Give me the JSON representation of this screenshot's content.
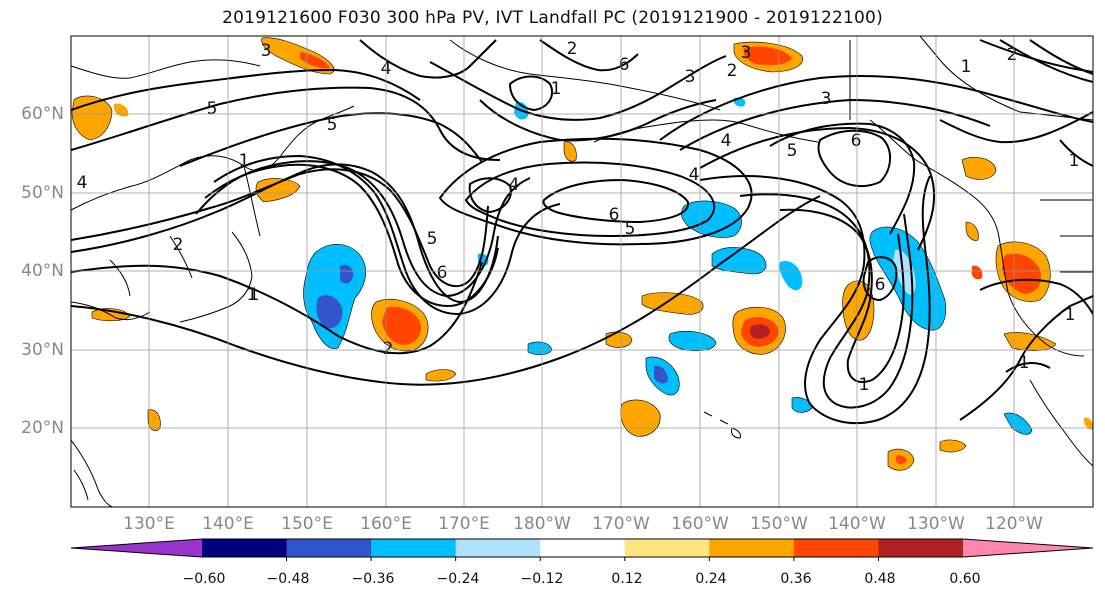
{
  "title": "2019121600 F030 300 hPa PV, IVT Landfall PC (2019121900 - 2019122100)",
  "lat_labels": [
    "60°N",
    "50°N",
    "40°N",
    "30°N",
    "20°N"
  ],
  "lon_labels": [
    "130°E",
    "140°E",
    "150°E",
    "160°E",
    "170°E",
    "180°W",
    "170°W",
    "160°W",
    "150°W",
    "140°W",
    "130°W",
    "120°W"
  ],
  "colorbar": {
    "ticks": [
      "−0.60",
      "−0.48",
      "−0.36",
      "−0.24",
      "−0.12",
      "0.12",
      "0.24",
      "0.36",
      "0.48",
      "0.60"
    ],
    "colors": [
      "#9933cc",
      "#000080",
      "#3355cc",
      "#00bfff",
      "#b0e2ff",
      "#ffffff",
      "#ffe680",
      "#ffa500",
      "#ff4500",
      "#b22222",
      "#ff88aa"
    ]
  },
  "contour_labels": [
    "3",
    "4",
    "2",
    "5",
    "1",
    "2",
    "1",
    "4",
    "5",
    "6",
    "4",
    "6",
    "5",
    "3",
    "2",
    "1",
    "3",
    "6",
    "5",
    "1",
    "6",
    "2",
    "1",
    "1",
    "4",
    "3",
    "2",
    "1",
    "1",
    "4",
    "5",
    "6",
    "1"
  ],
  "map": {
    "projection": "PlateCarree",
    "lon_range": [
      "120°E",
      "110°W"
    ],
    "lat_range": [
      "10°N",
      "70°N"
    ]
  }
}
